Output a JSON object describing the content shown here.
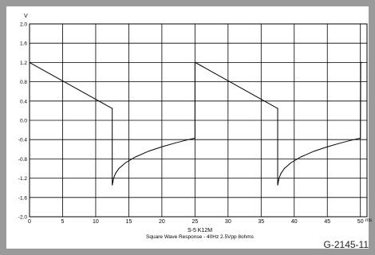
{
  "chart_data": {
    "type": "line",
    "title": "S-5 K12M",
    "subtitle": "Square Wave Response - 40Hz 2.5Vpp 8ohms",
    "ylabel": "V",
    "xlabel": "ms",
    "xlim": [
      0,
      51
    ],
    "ylim": [
      -2.0,
      2.0
    ],
    "x_ticks": [
      0,
      5,
      10,
      15,
      20,
      25,
      30,
      35,
      40,
      45,
      50
    ],
    "y_ticks": [
      2.0,
      1.6,
      1.2,
      0.8,
      0.4,
      0.0,
      -0.4,
      -0.8,
      -1.2,
      -1.6,
      -2.0
    ],
    "x_tick_labels": [
      "0",
      "5",
      "10",
      "15",
      "20",
      "25",
      "30",
      "35",
      "40",
      "45",
      "50"
    ],
    "y_tick_labels": [
      "2.0",
      "1.6",
      "1.2",
      "0.8",
      "0.4",
      "0.0",
      "-0.4",
      "-0.8",
      "-1.2",
      "-1.6",
      "-2.0"
    ],
    "grid": true,
    "series": [
      {
        "color": "#000000",
        "x": [
          0,
          12.45,
          12.5,
          12.5,
          12.7,
          13.0,
          13.5,
          14.5,
          16,
          18,
          20,
          22,
          24,
          25,
          25,
          25.05,
          37.45,
          37.5,
          37.5,
          37.7,
          38.0,
          38.5,
          39.5,
          41,
          43,
          45,
          47,
          49,
          50,
          50.05,
          50.3
        ],
        "y": [
          1.2,
          0.25,
          0.25,
          -1.35,
          -1.2,
          -1.1,
          -1.0,
          -0.88,
          -0.76,
          -0.64,
          -0.55,
          -0.47,
          -0.4,
          -0.37,
          1.2,
          1.2,
          0.25,
          0.25,
          -1.35,
          -1.2,
          -1.1,
          -1.0,
          -0.88,
          -0.76,
          -0.64,
          -0.55,
          -0.47,
          -0.4,
          -0.37,
          1.2,
          1.2
        ]
      }
    ]
  },
  "figure_code": "G-2145-11",
  "colors": {
    "border": "#9a9a9a",
    "grid": "#000000",
    "plot_bg": "#ffffff"
  }
}
